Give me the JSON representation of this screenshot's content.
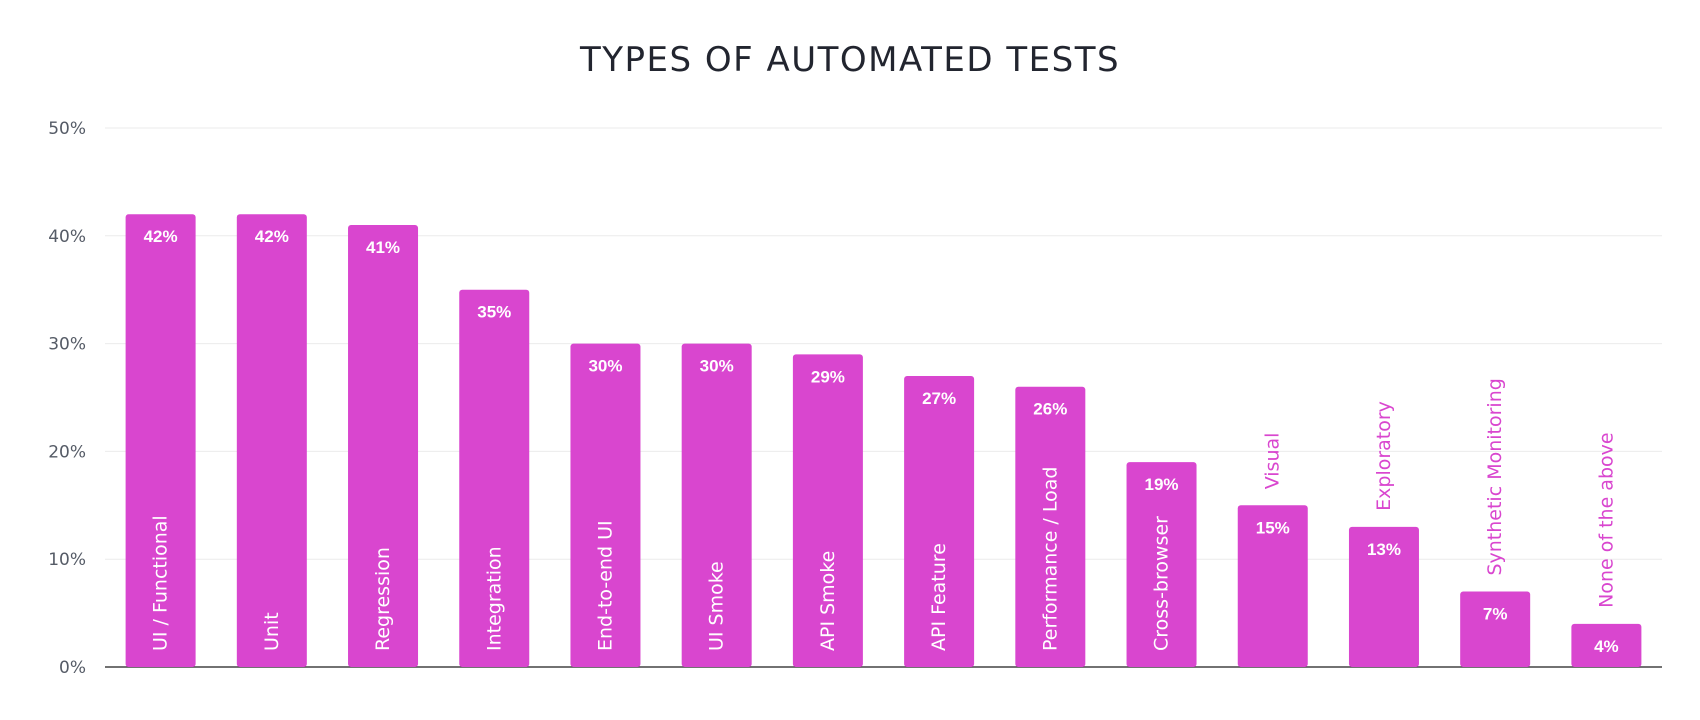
{
  "chart_data": {
    "type": "bar",
    "title": "TYPES OF AUTOMATED TESTS",
    "xlabel": "",
    "ylabel": "",
    "ylim": [
      0,
      50
    ],
    "y_ticks": [
      "0%",
      "10%",
      "20%",
      "30%",
      "40%",
      "50%"
    ],
    "grid": true,
    "categories": [
      "UI / Functional",
      "Unit",
      "Regression",
      "Integration",
      "End-to-end UI",
      "UI Smoke",
      "API Smoke",
      "API Feature",
      "Performance / Load",
      "Cross-browser",
      "Visual",
      "Exploratory",
      "Synthetic Monitoring",
      "None of the above"
    ],
    "values": [
      42,
      42,
      41,
      35,
      30,
      30,
      29,
      27,
      26,
      19,
      15,
      13,
      7,
      4
    ],
    "value_labels": [
      "42%",
      "42%",
      "41%",
      "35%",
      "30%",
      "30%",
      "29%",
      "27%",
      "26%",
      "19%",
      "15%",
      "13%",
      "7%",
      "4%"
    ],
    "bar_color": "#d946cf",
    "label_color_inside": "#ffffff",
    "label_color_outside": "#d946cf"
  }
}
